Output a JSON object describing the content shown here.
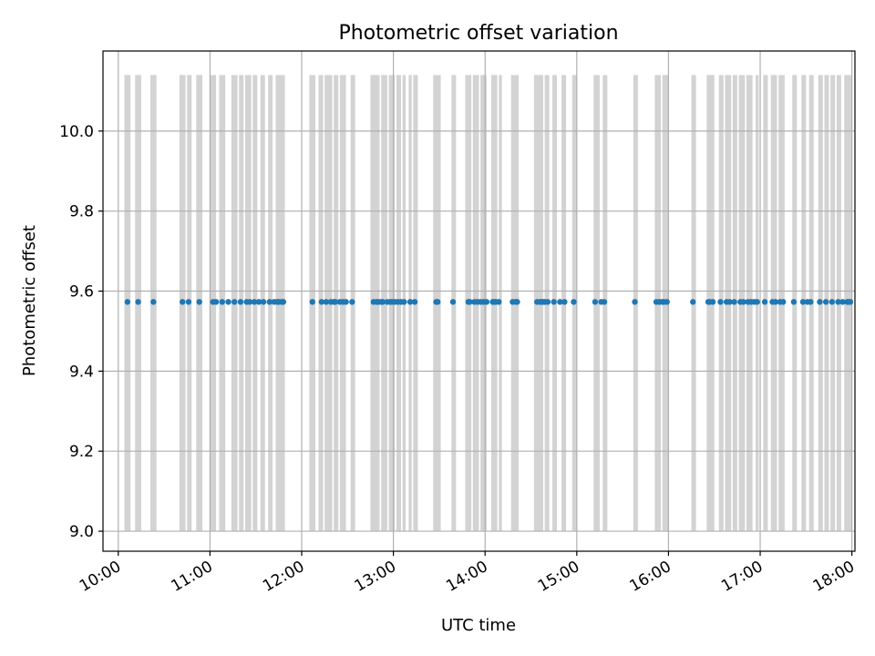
{
  "chart_data": {
    "type": "scatter",
    "title": "Photometric offset variation",
    "xlabel": "UTC time",
    "ylabel": "Photometric offset",
    "xlim": [
      "09:50",
      "18:02"
    ],
    "ylim": [
      8.95,
      10.2
    ],
    "x_ticks": [
      "10:00",
      "11:00",
      "12:00",
      "13:00",
      "14:00",
      "15:00",
      "16:00",
      "17:00",
      "18:00"
    ],
    "y_ticks": [
      "9.0",
      "9.2",
      "9.4",
      "9.6",
      "9.8",
      "10.0"
    ],
    "grid": true,
    "marker_color": "#1f77b4",
    "band_color": "#d3d3d3",
    "band_range": [
      9.0,
      10.14
    ],
    "y_value": 9.573,
    "x": [
      "10:06",
      "10:13",
      "10:23",
      "10:42",
      "10:46",
      "10:53",
      "11:02",
      "11:04",
      "11:08",
      "11:12",
      "11:16",
      "11:20",
      "11:24",
      "11:26",
      "11:29",
      "11:32",
      "11:35",
      "11:39",
      "11:42",
      "11:44",
      "11:45",
      "11:47",
      "11:48",
      "12:07",
      "12:13",
      "12:16",
      "12:19",
      "12:21",
      "12:22",
      "12:25",
      "12:27",
      "12:29",
      "12:33",
      "12:47",
      "12:49",
      "12:50",
      "12:52",
      "12:53",
      "12:56",
      "12:58",
      "12:59",
      "13:01",
      "13:03",
      "13:05",
      "13:07",
      "13:11",
      "13:14",
      "13:28",
      "13:29",
      "13:39",
      "13:49",
      "13:50",
      "13:53",
      "13:55",
      "13:57",
      "13:59",
      "14:01",
      "14:05",
      "14:06",
      "14:07",
      "14:09",
      "14:18",
      "14:20",
      "14:21",
      "14:34",
      "14:36",
      "14:37",
      "14:38",
      "14:39",
      "14:41",
      "14:45",
      "14:49",
      "14:52",
      "14:58",
      "15:12",
      "15:16",
      "15:18",
      "15:38",
      "15:52",
      "15:54",
      "15:56",
      "15:57",
      "15:59",
      "16:16",
      "16:26",
      "16:27",
      "16:29",
      "16:34",
      "16:38",
      "16:40",
      "16:43",
      "16:47",
      "16:49",
      "16:52",
      "16:54",
      "16:56",
      "16:58",
      "17:03",
      "17:08",
      "17:10",
      "17:13",
      "17:15",
      "17:22",
      "17:28",
      "17:31",
      "17:33",
      "17:39",
      "17:43",
      "17:47",
      "17:51",
      "17:54",
      "17:57",
      "17:58",
      "17:59"
    ],
    "y": [
      9.573,
      9.573,
      9.573,
      9.573,
      9.573,
      9.573,
      9.573,
      9.573,
      9.573,
      9.573,
      9.573,
      9.573,
      9.573,
      9.573,
      9.573,
      9.573,
      9.573,
      9.573,
      9.573,
      9.573,
      9.573,
      9.573,
      9.573,
      9.573,
      9.573,
      9.573,
      9.573,
      9.573,
      9.573,
      9.573,
      9.573,
      9.573,
      9.573,
      9.573,
      9.573,
      9.573,
      9.573,
      9.573,
      9.573,
      9.573,
      9.573,
      9.573,
      9.573,
      9.573,
      9.573,
      9.573,
      9.573,
      9.573,
      9.573,
      9.573,
      9.573,
      9.573,
      9.573,
      9.573,
      9.573,
      9.573,
      9.573,
      9.573,
      9.573,
      9.573,
      9.573,
      9.573,
      9.573,
      9.573,
      9.573,
      9.573,
      9.573,
      9.573,
      9.573,
      9.573,
      9.573,
      9.573,
      9.573,
      9.573,
      9.573,
      9.573,
      9.573,
      9.573,
      9.573,
      9.573,
      9.573,
      9.573,
      9.573,
      9.573,
      9.573,
      9.573,
      9.573,
      9.573,
      9.573,
      9.573,
      9.573,
      9.573,
      9.573,
      9.573,
      9.573,
      9.573,
      9.573,
      9.573,
      9.573,
      9.573,
      9.573,
      9.573,
      9.573,
      9.573,
      9.573,
      9.573,
      9.573,
      9.573,
      9.573,
      9.573,
      9.573,
      9.573,
      9.573,
      9.573
    ],
    "bands": [
      [
        "10:04",
        "10:08"
      ],
      [
        "10:11",
        "10:15"
      ],
      [
        "10:21",
        "10:25"
      ],
      [
        "10:40",
        "10:44"
      ],
      [
        "10:45",
        "10:48"
      ],
      [
        "10:51",
        "10:55"
      ],
      [
        "11:00",
        "11:04"
      ],
      [
        "11:06",
        "11:10"
      ],
      [
        "11:14",
        "11:18"
      ],
      [
        "11:19",
        "11:22"
      ],
      [
        "11:23",
        "11:27"
      ],
      [
        "11:28",
        "11:31"
      ],
      [
        "11:33",
        "11:36"
      ],
      [
        "11:38",
        "11:41"
      ],
      [
        "11:43",
        "11:49"
      ],
      [
        "12:05",
        "12:09"
      ],
      [
        "12:11",
        "12:14"
      ],
      [
        "12:15",
        "12:20"
      ],
      [
        "12:21",
        "12:24"
      ],
      [
        "12:25",
        "12:29"
      ],
      [
        "12:32",
        "12:35"
      ],
      [
        "12:45",
        "12:51"
      ],
      [
        "12:52",
        "12:56"
      ],
      [
        "12:57",
        "13:01"
      ],
      [
        "13:02",
        "13:05"
      ],
      [
        "13:06",
        "13:08"
      ],
      [
        "13:10",
        "13:12"
      ],
      [
        "13:13",
        "13:16"
      ],
      [
        "13:26",
        "13:31"
      ],
      [
        "13:38",
        "13:41"
      ],
      [
        "13:47",
        "13:51"
      ],
      [
        "13:52",
        "13:56"
      ],
      [
        "13:57",
        "14:01"
      ],
      [
        "14:04",
        "14:08"
      ],
      [
        "14:09",
        "14:11"
      ],
      [
        "14:17",
        "14:22"
      ],
      [
        "14:32",
        "14:38"
      ],
      [
        "14:39",
        "14:42"
      ],
      [
        "14:44",
        "14:47"
      ],
      [
        "14:50",
        "14:53"
      ],
      [
        "14:57",
        "15:00"
      ],
      [
        "15:11",
        "15:15"
      ],
      [
        "15:17",
        "15:20"
      ],
      [
        "15:37",
        "15:40"
      ],
      [
        "15:51",
        "15:55"
      ],
      [
        "15:56",
        "16:00"
      ],
      [
        "16:15",
        "16:18"
      ],
      [
        "16:25",
        "16:30"
      ],
      [
        "16:33",
        "16:36"
      ],
      [
        "16:37",
        "16:41"
      ],
      [
        "16:42",
        "16:45"
      ],
      [
        "16:46",
        "16:50"
      ],
      [
        "16:51",
        "16:55"
      ],
      [
        "16:57",
        "16:59"
      ],
      [
        "17:02",
        "17:05"
      ],
      [
        "17:07",
        "17:11"
      ],
      [
        "17:12",
        "17:16"
      ],
      [
        "17:21",
        "17:24"
      ],
      [
        "17:27",
        "17:30"
      ],
      [
        "17:32",
        "17:35"
      ],
      [
        "17:38",
        "17:41"
      ],
      [
        "17:42",
        "17:45"
      ],
      [
        "17:46",
        "17:49"
      ],
      [
        "17:50",
        "17:53"
      ],
      [
        "17:55",
        "18:00"
      ]
    ]
  }
}
